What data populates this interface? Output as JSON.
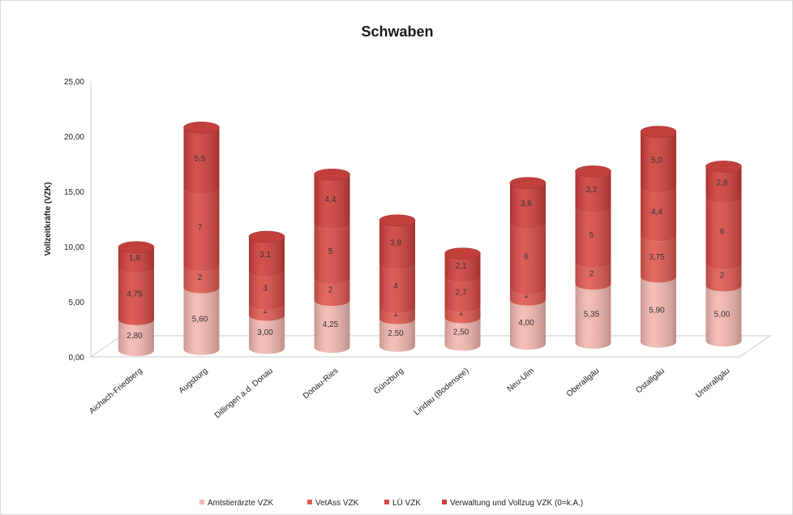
{
  "chart_data": {
    "type": "bar",
    "title": "Schwaben",
    "ylabel": "Vollzeitkräfte (VZK)",
    "ylim": [
      0,
      25
    ],
    "yticks": [
      "0,00",
      "5,00",
      "10,00",
      "15,00",
      "20,00",
      "25,00"
    ],
    "categories": [
      "Aichach-Friedberg",
      "Augsburg",
      "Dillingen a.d. Donau",
      "Donau-Ries",
      "Günzburg",
      "Lindau (Bodensee)",
      "Neu-Ulm",
      "Oberallgäu",
      "Ostallgäu",
      "Unterallgäu"
    ],
    "series": [
      {
        "name": "Amtstierärzte VZK",
        "color": "#f4b8b0",
        "values": [
          2.8,
          5.6,
          3.0,
          4.25,
          2.5,
          2.5,
          4.0,
          5.35,
          5.9,
          5.0
        ],
        "labels": [
          "2,80",
          "5,60",
          "3,00",
          "4,25",
          "2,50",
          "2,50",
          "4,00",
          "5,35",
          "5,90",
          "5,00"
        ]
      },
      {
        "name": "VetAss VZK",
        "color": "#e05a50",
        "values": [
          0,
          2,
          1,
          2,
          1,
          1,
          1,
          2,
          3.75,
          2
        ],
        "labels": [
          "0",
          "2",
          "1",
          "2",
          "1",
          "1",
          "1",
          "2",
          "3,75",
          "2"
        ]
      },
      {
        "name": "LÜ VZK",
        "color": "#d94a44",
        "values": [
          4.75,
          7,
          3,
          5,
          4,
          2.7,
          6,
          5,
          4.4,
          6
        ],
        "labels": [
          "4,75",
          "7",
          "3",
          "5",
          "4",
          "2,7",
          "6",
          "5",
          "4,4",
          "6"
        ]
      },
      {
        "name": "Verwaltung und Vollzug VZK (0=k.A.)",
        "color": "#cf3f3a",
        "values": [
          1.8,
          5.5,
          3.1,
          4.4,
          3.9,
          2.1,
          3.6,
          3.2,
          5.0,
          2.8
        ],
        "labels": [
          "1,8",
          "5,5",
          "3,1",
          "4,4",
          "3,9",
          "2,1",
          "3,6",
          "3,2",
          "5,0",
          "2,8"
        ]
      }
    ],
    "legend_position": "bottom",
    "grid": false
  }
}
